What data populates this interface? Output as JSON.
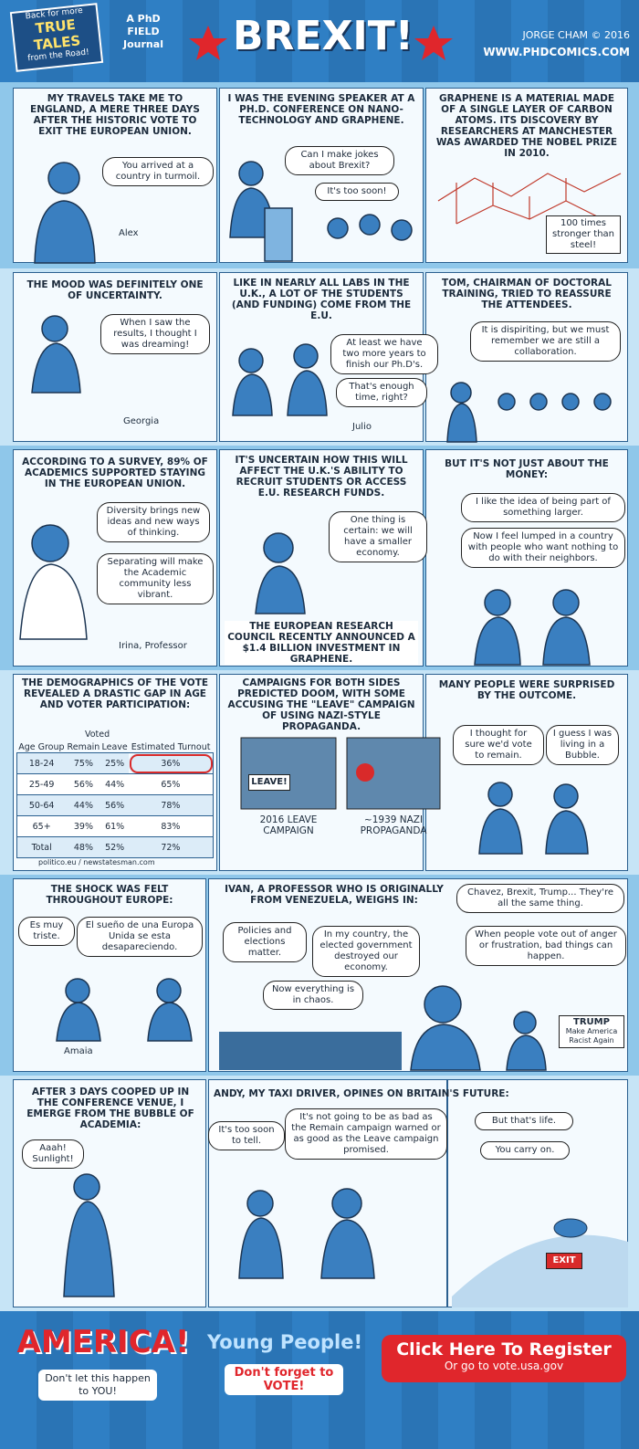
{
  "header": {
    "badge": [
      "Back for more",
      "TRUE TALES",
      "from the Road!"
    ],
    "journal": [
      "A PhD",
      "FIELD",
      "Journal"
    ],
    "title": "BREXIT!",
    "credit": "JORGE CHAM © 2016",
    "url": "WWW.PHDCOMICS.COM"
  },
  "panels": [
    {
      "caption": "MY TRAVELS TAKE ME TO ENGLAND, A MERE THREE DAYS AFTER THE HISTORIC VOTE TO EXIT THE EUROPEAN UNION.",
      "bubbles": [
        "You arrived at a country in turmoil."
      ],
      "name": "Alex"
    },
    {
      "caption": "I WAS THE EVENING SPEAKER AT A PH.D. CONFERENCE ON NANO-TECHNOLOGY AND GRAPHENE.",
      "bubbles": [
        "Can I make jokes about Brexit?",
        "It's too soon!"
      ]
    },
    {
      "caption": "GRAPHENE IS A MATERIAL MADE OF A SINGLE LAYER OF CARBON ATOMS. ITS DISCOVERY BY RESEARCHERS AT MANCHESTER WAS AWARDED THE NOBEL PRIZE IN 2010.",
      "sign": "100 times stronger than steel!"
    },
    {
      "caption": "THE MOOD WAS DEFINITELY ONE OF UNCERTAINTY.",
      "bubbles": [
        "When I saw the results, I thought I was dreaming!"
      ],
      "name": "Georgia"
    },
    {
      "caption": "LIKE IN NEARLY ALL LABS IN THE U.K., A LOT OF THE STUDENTS (AND FUNDING) COME FROM THE E.U.",
      "bubbles": [
        "At least we have two more years to finish our Ph.D's.",
        "That's enough time, right?"
      ],
      "name": "Julio"
    },
    {
      "caption": "TOM, CHAIRMAN OF DOCTORAL TRAINING, TRIED TO REASSURE THE ATTENDEES.",
      "bubbles": [
        "It is dispiriting, but we must remember we are still a collaboration."
      ]
    },
    {
      "caption": "ACCORDING TO A SURVEY, 89% OF ACADEMICS SUPPORTED STAYING IN THE EUROPEAN UNION.",
      "bubbles": [
        "Diversity brings new ideas and new ways of thinking.",
        "Separating will make the Academic community less vibrant."
      ],
      "name": "Irina, Professor"
    },
    {
      "caption": "IT'S UNCERTAIN HOW THIS WILL AFFECT THE U.K.'S ABILITY TO RECRUIT STUDENTS OR ACCESS E.U. RESEARCH FUNDS.",
      "bubbles": [
        "One thing is certain: we will have a smaller economy."
      ],
      "note": "THE EUROPEAN RESEARCH COUNCIL RECENTLY ANNOUNCED A $1.4 BILLION INVESTMENT IN GRAPHENE."
    },
    {
      "caption": "BUT IT'S NOT JUST ABOUT THE MONEY:",
      "bubbles": [
        "I like the idea of being part of something larger.",
        "Now I feel lumped in a country with people who want nothing to do with their neighbors."
      ]
    },
    {
      "caption": "THE DEMOGRAPHICS OF THE VOTE REVEALED A DRASTIC GAP IN AGE AND VOTER PARTICIPATION:",
      "table": {
        "group": "Voted",
        "headers": [
          "Age Group",
          "Remain",
          "Leave",
          "Estimated Turnout"
        ],
        "rows": [
          [
            "18-24",
            "75%",
            "25%",
            "36%"
          ],
          [
            "25-49",
            "56%",
            "44%",
            "65%"
          ],
          [
            "50-64",
            "44%",
            "56%",
            "78%"
          ],
          [
            "65+",
            "39%",
            "61%",
            "83%"
          ],
          [
            "Total",
            "48%",
            "52%",
            "72%"
          ]
        ]
      },
      "source": "politico.eu / newstatesman.com"
    },
    {
      "caption": "CAMPAIGNS FOR BOTH SIDES PREDICTED DOOM, WITH SOME ACCUSING THE \"LEAVE\" CAMPAIGN OF USING NAZI-STYLE PROPAGANDA.",
      "sign": "LEAVE!",
      "labels": [
        "2016 LEAVE CAMPAIGN",
        "~1939 NAZI PROPAGANDA"
      ]
    },
    {
      "caption": "MANY PEOPLE WERE SURPRISED BY THE OUTCOME.",
      "bubbles": [
        "I thought for sure we'd vote to remain.",
        "I guess I was living in a Bubble."
      ]
    },
    {
      "caption": "THE SHOCK WAS FELT THROUGHOUT EUROPE:",
      "bubbles": [
        "Es muy triste.",
        "El sueño de una Europa Unida se esta desapareciendo."
      ],
      "name": "Amaia"
    },
    {
      "caption": "IVAN, A PROFESSOR WHO IS ORIGINALLY FROM VENEZUELA, WEIGHS IN:",
      "bubbles": [
        "Policies and elections matter.",
        "In my country, the elected government destroyed our economy.",
        "Now everything is in chaos.",
        "Chavez, Brexit, Trump... They're all the same thing.",
        "When people vote out of anger or frustration, bad things can happen."
      ],
      "sign": {
        "title": "TRUMP",
        "text": "Make America Racist Again"
      }
    },
    {
      "caption": "AFTER 3 DAYS COOPED UP IN THE CONFERENCE VENUE, I EMERGE FROM THE BUBBLE OF ACADEMIA:",
      "bubbles": [
        "Aaah! Sunlight!"
      ]
    },
    {
      "caption": "ANDY, MY TAXI DRIVER, OPINES ON BRITAIN'S FUTURE:",
      "bubbles": [
        "It's too soon to tell.",
        "It's not going to be as bad as the Remain campaign warned or as good as the Leave campaign promised."
      ]
    },
    {
      "bubbles": [
        "But that's life.",
        "You carry on."
      ],
      "sign": "EXIT"
    }
  ],
  "footer": {
    "america": "AMERICA!",
    "warning": "Don't let this happen to YOU!",
    "young": "Young People!",
    "reminder": "Don't forget to VOTE!",
    "button": "Click Here To Register",
    "link": "Or go to vote.usa.gov"
  }
}
